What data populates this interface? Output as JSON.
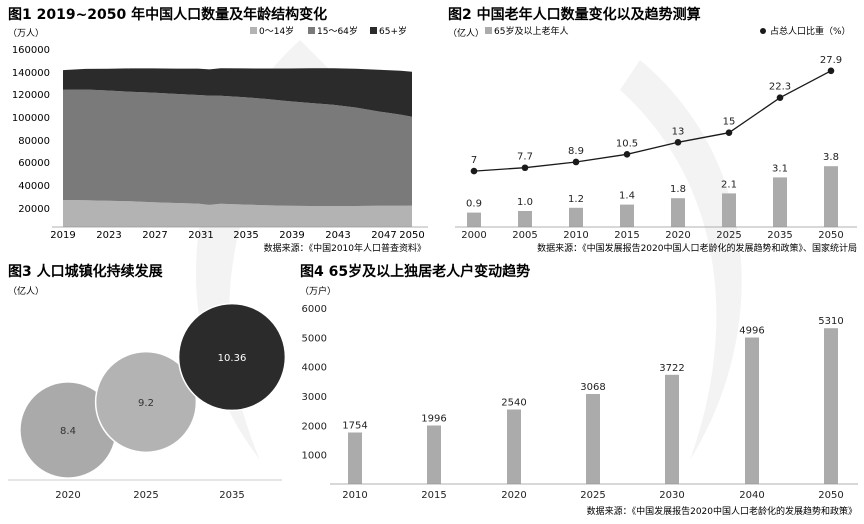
{
  "colors": {
    "dark": "#2b2b2b",
    "mid": "#7a7a7a",
    "light": "#b3b3b3",
    "bar": "#ababab",
    "line": "#1a1a1a",
    "text": "#222222",
    "grid": "#dddddd",
    "watermark": "#f3f3f3",
    "bubble1": "#aaaaaa",
    "bubble2": "#b3b3b3",
    "bubble3": "#2b2b2b"
  },
  "chart_data": [
    {
      "type": "area",
      "title": "图1 2019~2050 年中国人口数量及年龄结构变化",
      "ylabel": "（万人）",
      "y_ticks": [
        "160000",
        "140000",
        "120000",
        "100000",
        "80000",
        "60000",
        "40000",
        "20000"
      ],
      "x_ticks": [
        "2019",
        "2023",
        "2027",
        "2031",
        "2035",
        "2039",
        "2043",
        "2047",
        "2050"
      ],
      "legend": [
        "0～14岁",
        "15～64岁",
        "65+岁"
      ],
      "source": "数据来源：《中国2010年人口普查资料》",
      "ylim": [
        0,
        160000
      ],
      "x": [
        2019,
        2021,
        2023,
        2025,
        2027,
        2029,
        2031,
        2032,
        2033,
        2035,
        2037,
        2039,
        2041,
        2043,
        2045,
        2047,
        2049,
        2050
      ],
      "series": [
        {
          "name": "0～14岁",
          "values": [
            24000,
            23700,
            23300,
            22800,
            22000,
            21300,
            20800,
            19600,
            20600,
            20000,
            19400,
            18900,
            18700,
            18600,
            18700,
            18800,
            18900,
            19000
          ]
        },
        {
          "name": "15～64岁",
          "values": [
            98000,
            98500,
            98000,
            97500,
            97500,
            97000,
            96500,
            97200,
            96000,
            95500,
            94500,
            93000,
            91500,
            90000,
            87500,
            84000,
            81000,
            79000
          ]
        },
        {
          "name": "65+岁",
          "values": [
            17500,
            18300,
            19400,
            20700,
            21500,
            22500,
            23500,
            23300,
            24500,
            25500,
            27000,
            29000,
            31000,
            32500,
            34500,
            37000,
            39000,
            40000
          ]
        }
      ]
    },
    {
      "type": "bar+line",
      "title": "图2 中国老年人口数量变化以及趋势测算",
      "ylabel": "（亿人）",
      "legend_bar": "65岁及以上老年人",
      "legend_line": "占总人口比重（%）",
      "categories": [
        "2000",
        "2005",
        "2010",
        "2015",
        "2020",
        "2025",
        "2035",
        "2050"
      ],
      "bar_values": [
        0.9,
        1.0,
        1.2,
        1.4,
        1.8,
        2.1,
        3.1,
        3.8
      ],
      "bar_labels": [
        "0.9",
        "1.0",
        "1.2",
        "1.4",
        "1.8",
        "2.1",
        "3.1",
        "3.8"
      ],
      "line_values": [
        7,
        7.7,
        8.9,
        10.5,
        13,
        15,
        22.3,
        27.9
      ],
      "line_labels": [
        "7",
        "7.7",
        "8.9",
        "10.5",
        "13",
        "15",
        "22.3",
        "27.9"
      ],
      "source": "数据来源：《中国发展报告2020中国人口老龄化的发展趋势和政策》、国家统计局"
    },
    {
      "type": "bubble",
      "title": "图3 人口城镇化持续发展",
      "ylabel": "（亿人）",
      "categories": [
        "2020",
        "2025",
        "2035"
      ],
      "values": [
        8.4,
        9.2,
        10.36
      ],
      "labels": [
        "8.4",
        "9.2",
        "10.36"
      ]
    },
    {
      "type": "bar",
      "title": "图4 65岁及以上独居老人户变动趋势",
      "ylabel": "（万户）",
      "ylim": [
        0,
        6000
      ],
      "y_ticks": [
        "6000",
        "5000",
        "4000",
        "3000",
        "2000",
        "1000"
      ],
      "categories": [
        "2010",
        "2015",
        "2020",
        "2025",
        "2030",
        "2040",
        "2050"
      ],
      "values": [
        1754,
        1996,
        2540,
        3068,
        3722,
        4996,
        5310
      ],
      "labels": [
        "1754",
        "1996",
        "2540",
        "3068",
        "3722",
        "4996",
        "5310"
      ],
      "source": "数据来源：《中国发展报告2020中国人口老龄化的发展趋势和政策》"
    }
  ]
}
